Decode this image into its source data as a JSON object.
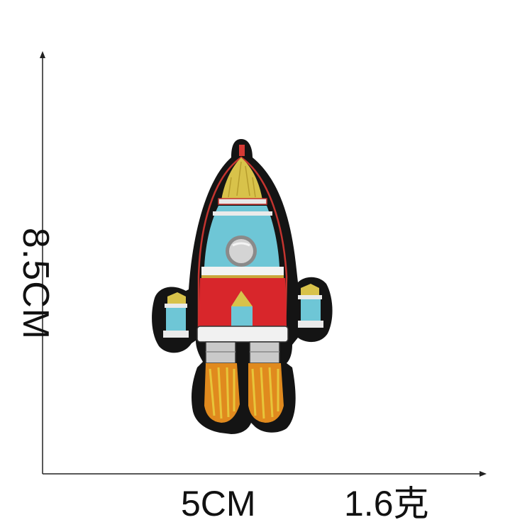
{
  "dimensions": {
    "height_label": "8.5CM",
    "width_label": "5CM",
    "weight_label": "1.6克"
  },
  "patch": {
    "subject": "rocket-embroidered-patch",
    "colors": {
      "border": "#141414",
      "body_cyan": "#6ec6d6",
      "body_red": "#d8262b",
      "nose_yellow": "#d8c24a",
      "flame_orange": "#e08a1e",
      "flame_yellow": "#e7c53a",
      "window_gray": "#c9c9c9",
      "white": "#f4f4f4"
    }
  }
}
